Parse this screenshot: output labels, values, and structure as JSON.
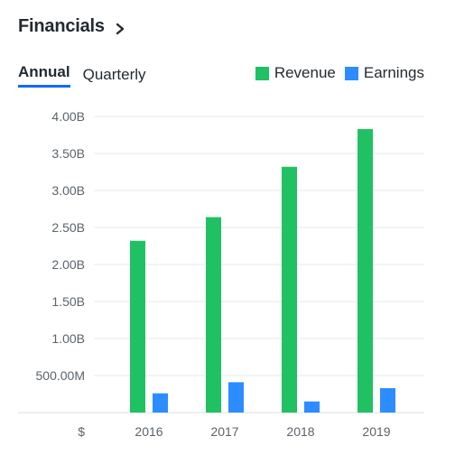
{
  "header": {
    "title": "Financials"
  },
  "tabs": [
    {
      "label": "Annual",
      "active": true
    },
    {
      "label": "Quarterly",
      "active": false
    }
  ],
  "legend": [
    {
      "label": "Revenue",
      "color": "#20c162"
    },
    {
      "label": "Earnings",
      "color": "#2d8cff"
    }
  ],
  "currency_label": "$",
  "chart_data": {
    "type": "bar",
    "categories": [
      "2016",
      "2017",
      "2018",
      "2019"
    ],
    "series": [
      {
        "name": "Revenue",
        "color": "#20c162",
        "values": [
          2.32,
          2.64,
          3.32,
          3.83
        ]
      },
      {
        "name": "Earnings",
        "color": "#2d8cff",
        "values": [
          0.26,
          0.41,
          0.15,
          0.33
        ]
      }
    ],
    "units": "B",
    "y_ticks": [
      "",
      "500.00M",
      "1.00B",
      "1.50B",
      "2.00B",
      "2.50B",
      "3.00B",
      "3.50B",
      "4.00B"
    ],
    "ylim": [
      0,
      4.0
    ],
    "grid": true,
    "legend_position": "top-right"
  }
}
